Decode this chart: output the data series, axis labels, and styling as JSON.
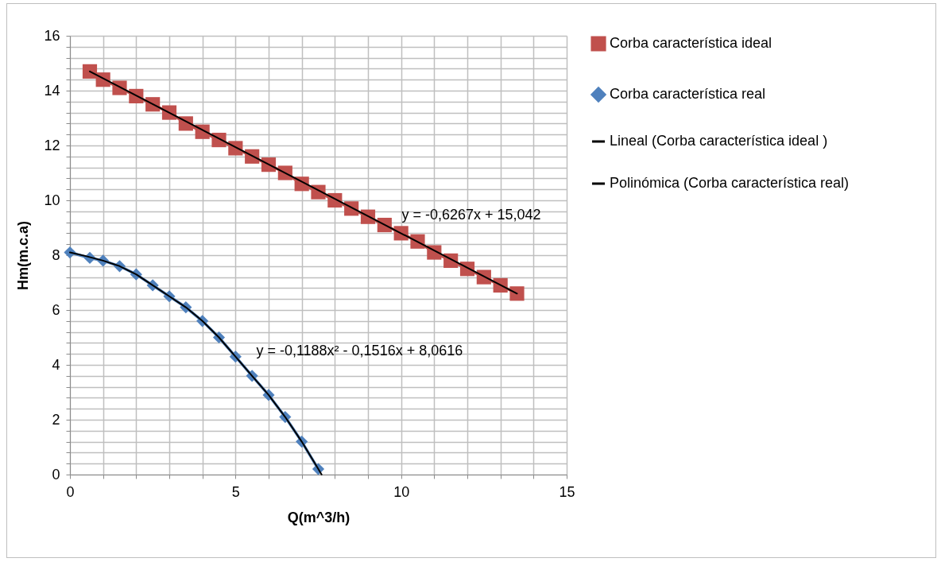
{
  "chart_data": {
    "type": "line",
    "xlabel": "Q(m^3/h)",
    "ylabel": "Hm(m.c.a)",
    "xlim": [
      0,
      15
    ],
    "ylim": [
      0,
      16
    ],
    "xticks": [
      0,
      {
        "value": 1,
        "label": null
      },
      {
        "value": 2,
        "label": null
      },
      {
        "value": 3,
        "label": null
      },
      {
        "value": 4,
        "label": null
      },
      5,
      {
        "value": 6,
        "label": null
      },
      {
        "value": 7,
        "label": null
      },
      {
        "value": 8,
        "label": null
      },
      {
        "value": 9,
        "label": null
      },
      10,
      {
        "value": 11,
        "label": null
      },
      {
        "value": 12,
        "label": null
      },
      {
        "value": 13,
        "label": null
      },
      {
        "value": 14,
        "label": null
      },
      15
    ],
    "yticks": [
      0,
      {
        "value": 0.4,
        "label": null
      },
      {
        "value": 0.8,
        "label": null
      },
      {
        "value": 1.2,
        "label": null
      },
      {
        "value": 1.6,
        "label": null
      },
      2,
      {
        "value": 2.4,
        "label": null
      },
      {
        "value": 2.8,
        "label": null
      },
      {
        "value": 3.2,
        "label": null
      },
      {
        "value": 3.6,
        "label": null
      },
      4,
      {
        "value": 4.4,
        "label": null
      },
      {
        "value": 4.8,
        "label": null
      },
      {
        "value": 5.2,
        "label": null
      },
      {
        "value": 5.6,
        "label": null
      },
      6,
      {
        "value": 6.4,
        "label": null
      },
      {
        "value": 6.8,
        "label": null
      },
      {
        "value": 7.2,
        "label": null
      },
      {
        "value": 7.6,
        "label": null
      },
      8,
      {
        "value": 8.4,
        "label": null
      },
      {
        "value": 8.8,
        "label": null
      },
      {
        "value": 9.2,
        "label": null
      },
      {
        "value": 9.6,
        "label": null
      },
      10,
      {
        "value": 10.4,
        "label": null
      },
      {
        "value": 10.8,
        "label": null
      },
      {
        "value": 11.2,
        "label": null
      },
      {
        "value": 11.6,
        "label": null
      },
      12,
      {
        "value": 12.4,
        "label": null
      },
      {
        "value": 12.8,
        "label": null
      },
      {
        "value": 13.2,
        "label": null
      },
      {
        "value": 13.6,
        "label": null
      },
      14,
      {
        "value": 14.4,
        "label": null
      },
      {
        "value": 14.8,
        "label": null
      },
      {
        "value": 15.2,
        "label": null
      },
      {
        "value": 15.6,
        "label": null
      },
      16
    ],
    "grid": true,
    "legend": "right",
    "series": [
      {
        "name": "Corba característica ideal",
        "color": "#c0504d",
        "marker": "square",
        "x": [
          0.6,
          1,
          1.5,
          2,
          2.5,
          3,
          3.5,
          4,
          4.5,
          5,
          5.5,
          6,
          6.5,
          7,
          7.5,
          8,
          8.5,
          9,
          9.5,
          10,
          10.5,
          11,
          11.5,
          12,
          12.5,
          13,
          13.5
        ],
        "values": [
          14.7,
          14.4,
          14.1,
          13.8,
          13.5,
          13.2,
          12.8,
          12.5,
          12.2,
          11.9,
          11.6,
          11.3,
          11.0,
          10.6,
          10.3,
          10.0,
          9.7,
          9.4,
          9.1,
          8.8,
          8.5,
          8.1,
          7.8,
          7.5,
          7.2,
          6.9,
          6.6
        ]
      },
      {
        "name": "Corba característica real",
        "color": "#4f81bd",
        "marker": "diamond",
        "x": [
          0,
          0.6,
          1,
          1.5,
          2,
          2.5,
          3,
          3.5,
          4,
          4.5,
          5,
          5.5,
          6,
          6.5,
          7,
          7.5
        ],
        "values": [
          8.1,
          7.9,
          7.8,
          7.6,
          7.3,
          6.9,
          6.5,
          6.1,
          5.6,
          5.0,
          4.3,
          3.6,
          2.9,
          2.1,
          1.2,
          0.2
        ]
      },
      {
        "name": "Lineal (Corba característica ideal )",
        "color": "#000000",
        "marker": "none",
        "x": [
          0.6,
          13.5
        ],
        "values": [
          14.7,
          6.6
        ]
      },
      {
        "name": "Polinómica (Corba característica real)",
        "color": "#000000",
        "marker": "none",
        "x": [
          0,
          0.5,
          1,
          1.5,
          2,
          2.5,
          3,
          3.5,
          4,
          4.5,
          5,
          5.5,
          6,
          6.5,
          7,
          7.5,
          7.6
        ],
        "values": [
          8.1,
          7.96,
          7.8,
          7.6,
          7.3,
          6.9,
          6.5,
          6.1,
          5.6,
          5.0,
          4.3,
          3.6,
          2.9,
          2.1,
          1.2,
          0.2,
          0
        ]
      }
    ],
    "annotations": [
      "y = -0,6267x + 15,042",
      "y = -0,1188x² - 0,1516x + 8,0616"
    ]
  }
}
